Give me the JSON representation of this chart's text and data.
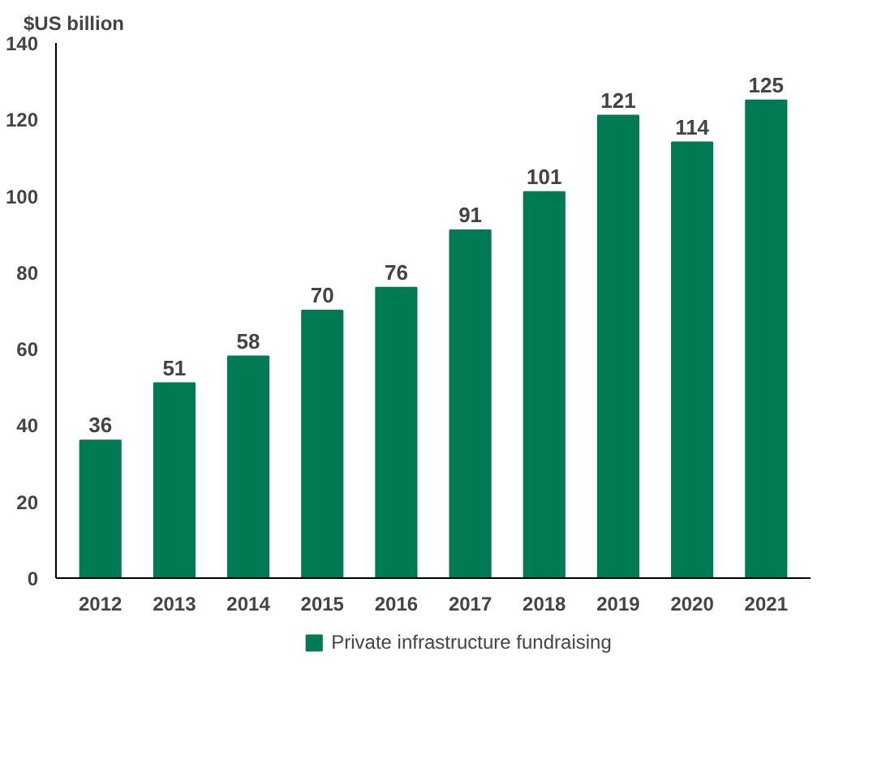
{
  "chart_data": {
    "type": "bar",
    "ylabel": "$US billion",
    "categories": [
      "2012",
      "2013",
      "2014",
      "2015",
      "2016",
      "2017",
      "2018",
      "2019",
      "2020",
      "2021"
    ],
    "series": [
      {
        "name": "Private infrastructure fundraising",
        "color": "#007a53",
        "values": [
          36,
          51,
          58,
          70,
          76,
          91,
          101,
          121,
          114,
          125
        ]
      }
    ],
    "ylim": [
      0,
      140
    ],
    "yticks": [
      0,
      20,
      40,
      60,
      80,
      100,
      120,
      140
    ],
    "grid": false,
    "legend": "bottom",
    "data_labels": true
  }
}
